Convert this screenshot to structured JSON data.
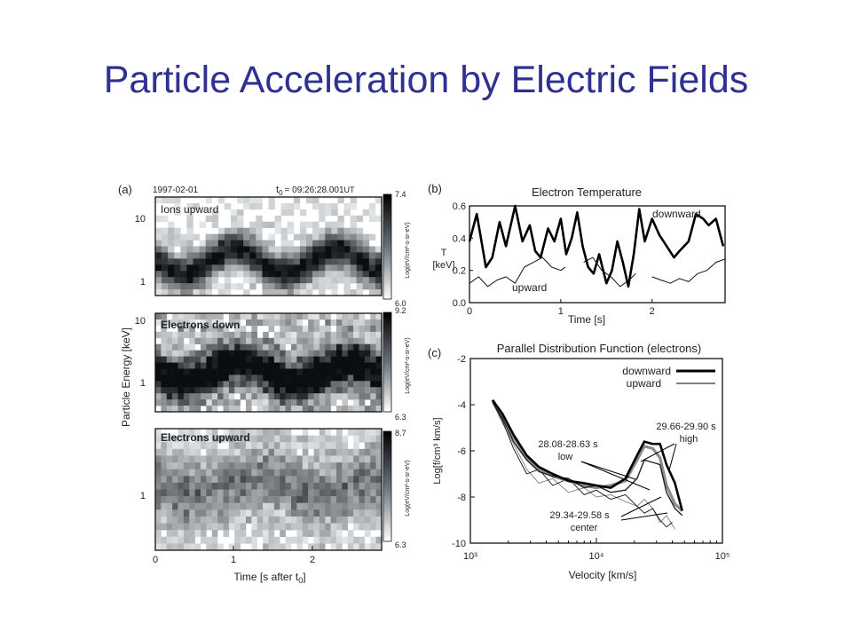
{
  "slide": {
    "title": "Particle Acceleration by Electric Fields"
  },
  "colors": {
    "title": "#2e3192",
    "cell_dark": "#0b0d12",
    "cell_light": "#f4f6f8",
    "background": "#ffffff"
  },
  "figure": {
    "panel_a": {
      "label": "(a)",
      "date": "1997-02-01",
      "time_ref": "t",
      "time_ref_sub": "0",
      "time_value": "= 09:26:28.001",
      "time_unit": "UT",
      "y_axis_label": "Particle Energy [keV]",
      "x_axis_label": "Time [s after t",
      "x_axis_label_sub": "0",
      "x_axis_label_end": "]",
      "x_ticks": [
        "0",
        "1",
        "2"
      ],
      "subpanels": [
        {
          "name": "Ions upward",
          "y_ticks": [
            "10",
            "1"
          ],
          "colorbar": {
            "max": "7.4",
            "min": "6.0",
            "label": "Log(eV/cm²-s-sr-eV)"
          }
        },
        {
          "name": "Electrons down",
          "y_ticks": [
            "10",
            "1"
          ],
          "colorbar": {
            "max": "9.2",
            "min": "6.3",
            "label": "Log(eV/cm²-s-sr-eV)"
          }
        },
        {
          "name": "Electrons upward",
          "y_ticks": [
            "1"
          ],
          "colorbar": {
            "max": "8.7",
            "min": "6.3",
            "label": "Log(eV/cm²-s-sr-eV)"
          }
        }
      ]
    },
    "panel_b": {
      "label": "(b)"
    },
    "panel_c": {
      "label": "(c)"
    }
  },
  "chart_data": [
    {
      "type": "line",
      "title": "Electron Temperature",
      "xlabel": "Time [s]",
      "ylabel": "T [keV]",
      "ylabel_line1": "T",
      "ylabel_line2": "[keV]",
      "xlim": [
        0,
        2.8
      ],
      "ylim": [
        0,
        0.6
      ],
      "x_ticks": [
        "0",
        "1",
        "2"
      ],
      "y_ticks": [
        "0.6",
        "0.4",
        "0.2",
        "0.0"
      ],
      "series": [
        {
          "name": "downward",
          "x": [
            0,
            0.08,
            0.18,
            0.25,
            0.33,
            0.4,
            0.5,
            0.58,
            0.66,
            0.72,
            0.78,
            0.86,
            0.93,
            1.0,
            1.06,
            1.12,
            1.18,
            1.24,
            1.3,
            1.36,
            1.42,
            1.5,
            1.56,
            1.62,
            1.68,
            1.74,
            1.8,
            1.86,
            1.92,
            2.0,
            2.08,
            2.16,
            2.24,
            2.3,
            2.4,
            2.48,
            2.56,
            2.62,
            2.7,
            2.78
          ],
          "y": [
            0.38,
            0.55,
            0.22,
            0.28,
            0.5,
            0.35,
            0.6,
            0.38,
            0.48,
            0.32,
            0.28,
            0.46,
            0.38,
            0.52,
            0.3,
            0.4,
            0.56,
            0.35,
            0.22,
            0.18,
            0.3,
            0.12,
            0.2,
            0.38,
            0.25,
            0.1,
            0.3,
            0.58,
            0.38,
            0.52,
            0.42,
            0.35,
            0.28,
            0.32,
            0.38,
            0.55,
            0.52,
            0.48,
            0.52,
            0.35
          ]
        },
        {
          "name": "upward",
          "segments": [
            {
              "x": [
                0,
                0.1,
                0.2,
                0.3,
                0.4,
                0.5,
                0.6,
                0.7,
                0.8,
                0.9,
                1.0,
                1.05
              ],
              "y": [
                0.12,
                0.16,
                0.1,
                0.14,
                0.16,
                0.12,
                0.22,
                0.25,
                0.28,
                0.22,
                0.2,
                0.22
              ]
            },
            {
              "x": [
                1.25,
                1.35,
                1.45,
                1.55,
                1.65,
                1.75,
                1.82
              ],
              "y": [
                0.25,
                0.28,
                0.2,
                0.16,
                0.1,
                0.14,
                0.18
              ]
            },
            {
              "x": [
                2.0,
                2.1,
                2.2,
                2.3,
                2.4,
                2.5,
                2.6,
                2.7,
                2.8
              ],
              "y": [
                0.16,
                0.14,
                0.12,
                0.15,
                0.13,
                0.18,
                0.2,
                0.25,
                0.27
              ]
            }
          ]
        }
      ]
    },
    {
      "type": "line",
      "title": "Parallel Distribution Function (electrons)",
      "xlabel": "Velocity [km/s]",
      "ylabel": "Log[f/cm³ km/s]",
      "x_scale": "log",
      "xlim": [
        1000,
        100000
      ],
      "ylim": [
        -10,
        -2
      ],
      "x_ticks": [
        "10³",
        "10⁴",
        "10⁵"
      ],
      "y_ticks": [
        "-2",
        "-4",
        "-6",
        "-8",
        "-10"
      ],
      "legend": {
        "placement": "top-right",
        "entries": [
          "downward",
          "upward"
        ]
      },
      "annotations": [
        {
          "label": "29.66-29.90 s",
          "sub": "high"
        },
        {
          "label": "28.08-28.63 s",
          "sub": "low"
        },
        {
          "label": "29.34-29.58 s",
          "sub": "center"
        }
      ],
      "series": [
        {
          "name": "downward (high)",
          "style": "black-thick",
          "x": [
            1500,
            1800,
            2200,
            2800,
            3500,
            4500,
            6000,
            8000,
            10000,
            13000,
            17000,
            21000,
            24000,
            28000,
            32000,
            36000,
            42000,
            48000
          ],
          "y": [
            -3.8,
            -4.4,
            -5.3,
            -6.2,
            -6.7,
            -7.0,
            -7.3,
            -7.4,
            -7.5,
            -7.6,
            -7.2,
            -6.2,
            -5.6,
            -5.7,
            -5.7,
            -6.6,
            -7.4,
            -8.6
          ]
        },
        {
          "name": "downward (low)",
          "style": "black-thin",
          "x": [
            1500,
            1800,
            2200,
            2800,
            3500,
            4500,
            6000,
            8000,
            10000,
            13000,
            17000,
            21000,
            24000,
            28000,
            32000,
            36000,
            42000,
            48000
          ],
          "y": [
            -3.9,
            -4.6,
            -5.6,
            -6.4,
            -6.9,
            -7.1,
            -7.2,
            -7.6,
            -7.5,
            -7.8,
            -7.7,
            -7.2,
            -6.4,
            -6.5,
            -6.6,
            -7.8,
            -8.5,
            -8.8
          ]
        },
        {
          "name": "downward (center)",
          "style": "gray-thick",
          "x": [
            1500,
            1800,
            2200,
            2800,
            3500,
            4500,
            6000,
            8000,
            10000,
            13000,
            17000,
            21000,
            24000,
            28000,
            32000,
            36000,
            42000,
            48000
          ],
          "y": [
            -3.8,
            -4.5,
            -5.4,
            -6.3,
            -6.8,
            -7.1,
            -7.3,
            -7.5,
            -7.6,
            -7.5,
            -7.3,
            -6.4,
            -5.8,
            -5.9,
            -6.3,
            -7.5,
            -8.3,
            -8.6
          ]
        },
        {
          "name": "upward (high)",
          "style": "gray-thin",
          "x": [
            1500,
            1800,
            2200,
            2800,
            3500,
            4500,
            6000,
            8000,
            10000,
            13000,
            17000,
            21000,
            24000,
            28000,
            32000,
            36000,
            42000
          ],
          "y": [
            -3.9,
            -4.8,
            -5.7,
            -6.8,
            -7.4,
            -7.2,
            -7.8,
            -7.6,
            -8.0,
            -7.9,
            -8.2,
            -8.4,
            -8.1,
            -8.5,
            -9.1,
            -8.8,
            -9.4
          ]
        },
        {
          "name": "upward (low)",
          "style": "black-hair",
          "x": [
            1500,
            1800,
            2200,
            2800,
            3500,
            4500,
            6000,
            8000,
            10000,
            13000,
            17000,
            21000,
            24000,
            28000,
            32000,
            36000,
            40000
          ],
          "y": [
            -3.9,
            -4.7,
            -5.9,
            -7.0,
            -6.8,
            -7.5,
            -7.2,
            -7.9,
            -7.7,
            -8.1,
            -7.9,
            -8.4,
            -8.7,
            -8.5,
            -9.0,
            -9.3,
            -9.1
          ]
        }
      ]
    }
  ]
}
